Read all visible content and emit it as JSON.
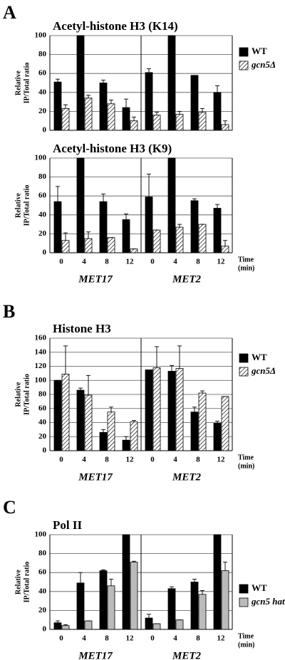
{
  "chart_data": [
    {
      "type": "bar",
      "panel_label": "A",
      "title": "Acetyl-histone H3 (K14)",
      "ylabel": [
        "Relative",
        "IP/Total ratio"
      ],
      "categories": [
        null,
        null,
        null,
        null,
        null,
        null,
        null,
        null
      ],
      "ylim": [
        0,
        100
      ],
      "yticks": [
        0,
        20,
        40,
        60,
        80,
        100
      ],
      "grid": true,
      "legend": "right",
      "series": [
        {
          "name": "WT",
          "color": "#000000",
          "values": [
            51,
            100,
            50,
            24,
            61,
            100,
            58,
            40
          ],
          "errors": [
            3,
            0,
            3,
            9,
            4,
            0,
            0,
            7
          ]
        },
        {
          "name": "gcn5Δ",
          "color": "hatch",
          "values": [
            23,
            34,
            28,
            10,
            16,
            17,
            19,
            6
          ],
          "errors": [
            4,
            3,
            4,
            4,
            3,
            3,
            4,
            4
          ]
        }
      ]
    },
    {
      "type": "bar",
      "title": "Acetyl-histone H3 (K9)",
      "ylabel": [
        "Relative",
        "IP/Total ratio"
      ],
      "xlabel": [
        "Time",
        "(min)"
      ],
      "categories": [
        "0",
        "4",
        "8",
        "12",
        "0",
        "4",
        "8",
        "12"
      ],
      "groups": [
        "MET17",
        "MET2"
      ],
      "ylim": [
        0,
        100
      ],
      "yticks": [
        0,
        20,
        40,
        60,
        80,
        100
      ],
      "grid": true,
      "series": [
        {
          "color": "#000000",
          "values": [
            54,
            100,
            54,
            35,
            59,
            100,
            55,
            47
          ],
          "errors": [
            16,
            0,
            8,
            6,
            24,
            0,
            2,
            4
          ]
        },
        {
          "color": "hatch",
          "values": [
            13,
            15,
            16,
            4,
            24,
            27,
            30,
            7
          ],
          "errors": [
            8,
            7,
            0,
            0,
            0,
            3,
            0,
            6
          ]
        }
      ]
    },
    {
      "type": "bar",
      "panel_label": "B",
      "title": "Histone H3",
      "ylabel": [
        "Relative",
        "IP/Total ratio"
      ],
      "xlabel": [
        "Time",
        "(min)"
      ],
      "categories": [
        "0",
        "4",
        "8",
        "12",
        "0",
        "4",
        "8",
        "12"
      ],
      "groups": [
        "MET17",
        "MET2"
      ],
      "ylim": [
        0,
        160
      ],
      "yticks": [
        0,
        20,
        40,
        60,
        80,
        100,
        120,
        140,
        160
      ],
      "grid": true,
      "legend": "right",
      "series": [
        {
          "name": "WT",
          "color": "#000000",
          "values": [
            100,
            86,
            26,
            15,
            115,
            113,
            55,
            39
          ],
          "errors": [
            0,
            3,
            4,
            5,
            0,
            8,
            7,
            3
          ]
        },
        {
          "name": "gcn5Δ",
          "color": "hatch",
          "values": [
            109,
            79,
            55,
            41,
            118,
            117,
            82,
            77
          ],
          "errors": [
            40,
            28,
            7,
            2,
            30,
            32,
            3,
            0
          ]
        }
      ]
    },
    {
      "type": "bar",
      "panel_label": "C",
      "title": "Pol II",
      "ylabel": [
        "Relative",
        "IP/Total ratio"
      ],
      "xlabel": [
        "Time",
        "(min)"
      ],
      "categories": [
        "0",
        "4",
        "8",
        "12",
        "0",
        "4",
        "8",
        "12"
      ],
      "groups": [
        "MET17",
        "MET2"
      ],
      "ylim": [
        0,
        100
      ],
      "yticks": [
        0,
        20,
        40,
        60,
        80,
        100
      ],
      "grid": true,
      "legend": "right",
      "series": [
        {
          "name": "WT",
          "color": "#000000",
          "values": [
            7,
            49,
            62,
            100,
            12,
            43,
            50,
            100
          ],
          "errors": [
            2,
            11,
            1,
            0,
            4,
            2,
            3,
            0
          ]
        },
        {
          "name": "gcn5 hat",
          "color": "#bbbbbb",
          "values": [
            4,
            9,
            46,
            71,
            6,
            10,
            37,
            62
          ],
          "errors": [
            1,
            0,
            7,
            1,
            0,
            0,
            4,
            9
          ]
        }
      ]
    }
  ]
}
